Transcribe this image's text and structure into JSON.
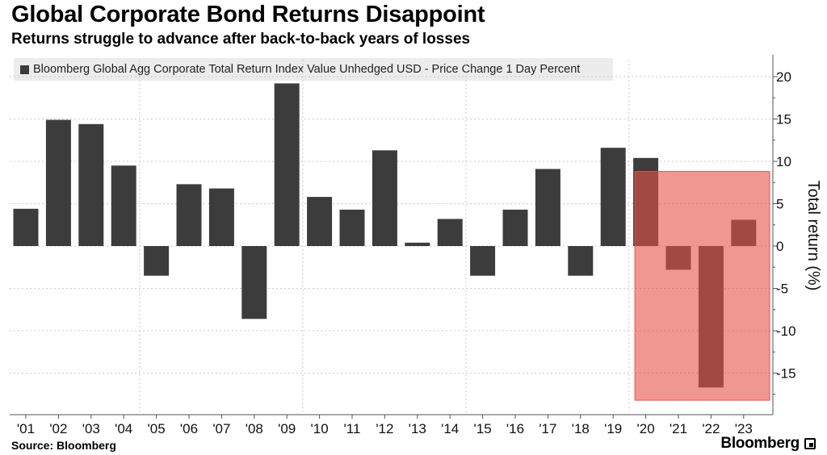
{
  "title": "Global Corporate Bond Returns Disappoint",
  "subtitle": "Returns struggle to advance after back-to-back years of losses",
  "legend_label": "Bloomberg Global Agg Corporate Total Return Index Value Unhedged USD - Price Change 1 Day Percent",
  "source": "Source: Bloomberg",
  "brand": "Bloomberg",
  "colors": {
    "bar": "#3c3c3c",
    "highlight": "#e8514a",
    "legend_bg": "#ececec",
    "grid": "#c8c8c8"
  },
  "chart_data": {
    "type": "bar",
    "categories": [
      "'01",
      "'02",
      "'03",
      "'04",
      "'05",
      "'06",
      "'07",
      "'08",
      "'09",
      "'10",
      "'11",
      "'12",
      "'13",
      "'14",
      "'15",
      "'16",
      "'17",
      "'18",
      "'19",
      "'20",
      "'21",
      "'22",
      "'23"
    ],
    "values": [
      4.4,
      14.9,
      14.4,
      9.5,
      -3.5,
      7.3,
      6.8,
      -8.6,
      19.2,
      5.8,
      4.3,
      11.3,
      0.4,
      3.2,
      -3.5,
      4.3,
      9.1,
      -3.5,
      11.6,
      10.4,
      -2.8,
      -16.7,
      3.1
    ],
    "ylabel": "Total return (%)",
    "ylim": [
      -20,
      22
    ],
    "yticks": [
      20,
      15,
      10,
      5,
      0,
      -5,
      -10,
      -15
    ],
    "y_tick_labels": [
      "20",
      "15",
      "10",
      "5",
      "0",
      "-5",
      "-10",
      "-15"
    ],
    "highlight_categories": [
      "'20",
      "'21",
      "'22",
      "'23"
    ],
    "highlight_range": [
      -18.2,
      8.8
    ],
    "y_axis_position": "right",
    "grid": true
  }
}
